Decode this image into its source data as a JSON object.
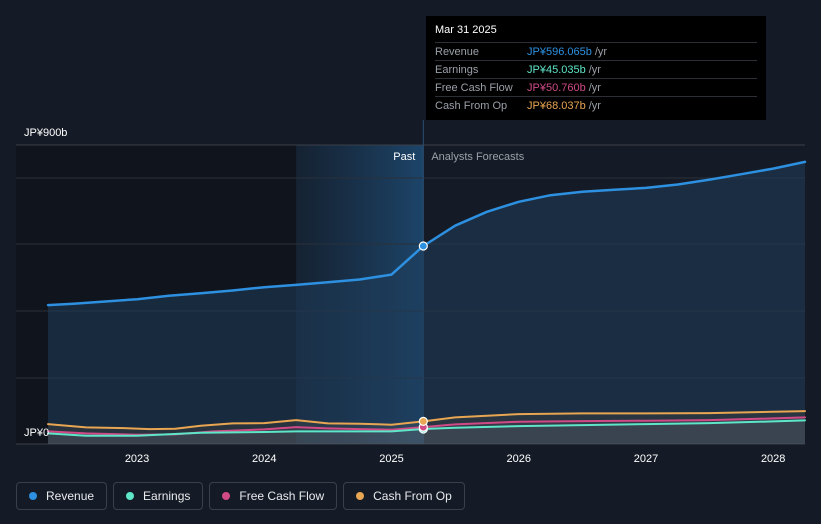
{
  "chart_data": {
    "type": "line",
    "y_axis": {
      "top_label": "JP¥900b",
      "bottom_label": "JP¥0",
      "ylim": [
        0,
        900
      ]
    },
    "x_ticks": [
      "2023",
      "2024",
      "2025",
      "2026",
      "2027",
      "2028"
    ],
    "xlim": [
      2022.3,
      2028.25
    ],
    "past_label": "Past",
    "forecast_label": "Analysts Forecasts",
    "divider_x": 2025.25,
    "highlight_start_x": 2024.25,
    "series": [
      {
        "name": "Revenue",
        "color": "#2d90e0",
        "points": [
          [
            2022.3,
            418
          ],
          [
            2022.5,
            422
          ],
          [
            2022.75,
            429
          ],
          [
            2023.0,
            436
          ],
          [
            2023.25,
            446
          ],
          [
            2023.5,
            454
          ],
          [
            2023.75,
            462
          ],
          [
            2024.0,
            472
          ],
          [
            2024.25,
            479
          ],
          [
            2024.5,
            487
          ],
          [
            2024.75,
            495
          ],
          [
            2025.0,
            510
          ],
          [
            2025.25,
            596.065
          ],
          [
            2025.5,
            657
          ],
          [
            2025.75,
            699
          ],
          [
            2026.0,
            729
          ],
          [
            2026.25,
            749
          ],
          [
            2026.5,
            759
          ],
          [
            2026.75,
            765
          ],
          [
            2027.0,
            771
          ],
          [
            2027.25,
            781
          ],
          [
            2027.5,
            796
          ],
          [
            2027.75,
            812
          ],
          [
            2028.0,
            829
          ],
          [
            2028.25,
            849
          ]
        ]
      },
      {
        "name": "Earnings",
        "color": "#5ee6c8",
        "points": [
          [
            2022.3,
            32
          ],
          [
            2022.6,
            25
          ],
          [
            2023.0,
            25
          ],
          [
            2023.5,
            34
          ],
          [
            2024.0,
            36
          ],
          [
            2024.25,
            38
          ],
          [
            2024.75,
            38
          ],
          [
            2025.0,
            38
          ],
          [
            2025.25,
            45.035
          ],
          [
            2025.5,
            49
          ],
          [
            2026.0,
            54
          ],
          [
            2026.5,
            57
          ],
          [
            2027.0,
            60
          ],
          [
            2027.5,
            63
          ],
          [
            2028.0,
            68
          ],
          [
            2028.25,
            71
          ]
        ]
      },
      {
        "name": "Free Cash Flow",
        "color": "#d04a86",
        "points": [
          [
            2022.3,
            38
          ],
          [
            2022.6,
            32
          ],
          [
            2023.0,
            28
          ],
          [
            2023.3,
            29
          ],
          [
            2023.6,
            38
          ],
          [
            2024.0,
            44
          ],
          [
            2024.25,
            51
          ],
          [
            2024.5,
            47
          ],
          [
            2024.75,
            45
          ],
          [
            2025.0,
            43
          ],
          [
            2025.25,
            50.76
          ],
          [
            2025.5,
            59
          ],
          [
            2026.0,
            67
          ],
          [
            2026.5,
            69
          ],
          [
            2027.0,
            70
          ],
          [
            2027.5,
            72
          ],
          [
            2028.0,
            77
          ],
          [
            2028.25,
            80
          ]
        ]
      },
      {
        "name": "Cash From Op",
        "color": "#e8a552",
        "points": [
          [
            2022.3,
            60
          ],
          [
            2022.6,
            50
          ],
          [
            2022.9,
            48
          ],
          [
            2023.1,
            45
          ],
          [
            2023.3,
            46
          ],
          [
            2023.5,
            55
          ],
          [
            2023.75,
            62
          ],
          [
            2024.0,
            63
          ],
          [
            2024.25,
            72
          ],
          [
            2024.5,
            62
          ],
          [
            2024.75,
            61
          ],
          [
            2025.0,
            58
          ],
          [
            2025.25,
            68.037
          ],
          [
            2025.5,
            80
          ],
          [
            2026.0,
            90
          ],
          [
            2026.5,
            92
          ],
          [
            2027.0,
            92
          ],
          [
            2027.5,
            93
          ],
          [
            2028.0,
            97
          ],
          [
            2028.25,
            99
          ]
        ]
      }
    ]
  },
  "tooltip": {
    "date": "Mar 31 2025",
    "rows": [
      {
        "label": "Revenue",
        "value": "JP¥596.065b",
        "unit": "/yr",
        "color": "#2d90e0"
      },
      {
        "label": "Earnings",
        "value": "JP¥45.035b",
        "unit": "/yr",
        "color": "#5ee6c8"
      },
      {
        "label": "Free Cash Flow",
        "value": "JP¥50.760b",
        "unit": "/yr",
        "color": "#d04a86"
      },
      {
        "label": "Cash From Op",
        "value": "JP¥68.037b",
        "unit": "/yr",
        "color": "#e8a552"
      }
    ]
  },
  "legend": [
    {
      "label": "Revenue",
      "color": "#2d90e0"
    },
    {
      "label": "Earnings",
      "color": "#5ee6c8"
    },
    {
      "label": "Free Cash Flow",
      "color": "#d04a86"
    },
    {
      "label": "Cash From Op",
      "color": "#e8a552"
    }
  ]
}
